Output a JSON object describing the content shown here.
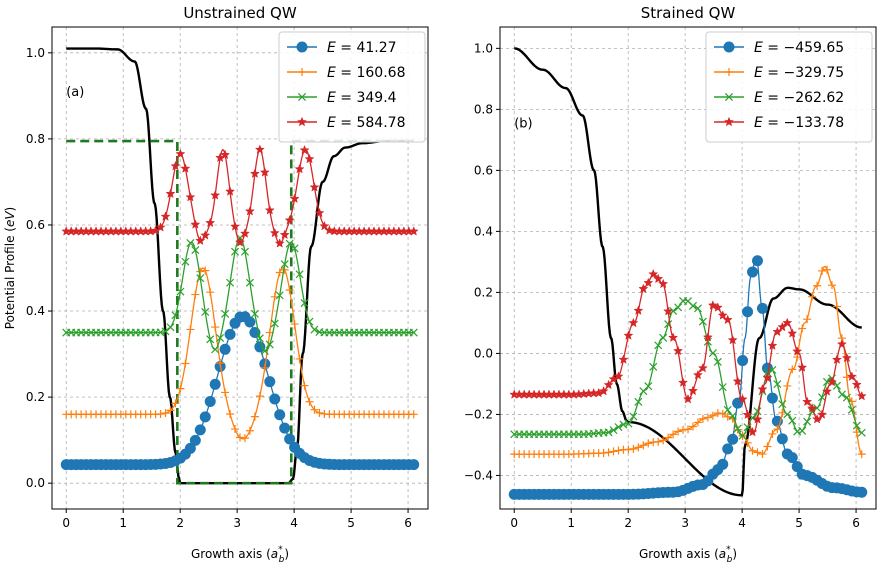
{
  "chart_data": [
    {
      "type": "line",
      "title": "Unstrained QW",
      "panel_label": "(a)",
      "xlabel": "Growth axis (a*_b)",
      "ylabel": "Potential Profile (eV)",
      "xlim": [
        -0.25,
        6.35
      ],
      "ylim": [
        -0.06,
        1.06
      ],
      "xticks": [
        0,
        1,
        2,
        3,
        4,
        5,
        6
      ],
      "yticks": [
        0.0,
        0.2,
        0.4,
        0.6,
        0.8,
        1.0
      ],
      "ytick_labels": [
        "0.0",
        "0.2",
        "0.4",
        "0.6",
        "0.8",
        "1.0"
      ],
      "legend_position": "top-right",
      "potentials": [
        {
          "name": "conduction potential",
          "color": "#000000",
          "style": "solid",
          "x": [
            0,
            0.5,
            0.9,
            1.2,
            1.4,
            1.55,
            1.7,
            1.82,
            1.92,
            1.98,
            2.0,
            3.9,
            3.98,
            4.05,
            4.15,
            4.3,
            4.5,
            4.7,
            4.9,
            5.2,
            5.6,
            6.1
          ],
          "y": [
            1.01,
            1.01,
            1.008,
            0.98,
            0.87,
            0.65,
            0.4,
            0.2,
            0.07,
            0.01,
            0.0,
            0.0,
            0.01,
            0.08,
            0.3,
            0.55,
            0.7,
            0.76,
            0.78,
            0.79,
            0.795,
            0.795
          ]
        },
        {
          "name": "step potential",
          "color": "#1f7a1f",
          "style": "dashed",
          "x": [
            0,
            1.95,
            1.95,
            3.95,
            3.95,
            6.1
          ],
          "y": [
            0.795,
            0.795,
            0.0,
            0.0,
            0.795,
            0.795
          ]
        }
      ],
      "series": [
        {
          "label": "E = 41.27",
          "name": "E=",
          "value": "41.27",
          "color": "#1f77b4",
          "marker": "circle",
          "baseline": 0.043,
          "curve": {
            "type": "bumps",
            "centers": [
              3.1
            ],
            "amps": [
              0.345
            ],
            "sigmas": [
              0.62
            ],
            "lo": 1.5,
            "hi": 4.7
          }
        },
        {
          "label": "E = 160.68",
          "name": "E=",
          "value": "160.68",
          "color": "#ff7f0e",
          "marker": "plus",
          "baseline": 0.16,
          "curve": {
            "type": "bumps",
            "centers": [
              2.4,
              3.8,
              3.1
            ],
            "amps": [
              0.34,
              0.34,
              -0.06
            ],
            "sigmas": [
              0.3,
              0.3,
              0.25
            ],
            "lo": 1.3,
            "hi": 4.9
          }
        },
        {
          "label": "E = 349.4",
          "name": "E=",
          "value": "349.4",
          "color": "#2ca02c",
          "marker": "x",
          "baseline": 0.35,
          "curve": {
            "type": "bumps",
            "centers": [
              2.2,
              3.05,
              3.95,
              2.6,
              3.5
            ],
            "amps": [
              0.21,
              0.22,
              0.21,
              -0.05,
              -0.05
            ],
            "sigmas": [
              0.22,
              0.22,
              0.22,
              0.15,
              0.15
            ],
            "lo": 1.3,
            "hi": 4.9
          }
        },
        {
          "label": "E = 584.78",
          "name": "E=",
          "value": "584.78",
          "color": "#d62728",
          "marker": "star",
          "baseline": 0.585,
          "curve": {
            "type": "bumps",
            "centers": [
              2.0,
              2.75,
              3.4,
              4.2,
              2.35,
              3.05,
              3.75
            ],
            "amps": [
              0.18,
              0.19,
              0.19,
              0.19,
              -0.03,
              -0.03,
              -0.03
            ],
            "sigmas": [
              0.2,
              0.15,
              0.15,
              0.2,
              0.1,
              0.1,
              0.1
            ],
            "lo": 1.3,
            "hi": 4.9
          }
        }
      ]
    },
    {
      "type": "line",
      "title": "Strained QW",
      "panel_label": "(b)",
      "xlabel": "Growth axis (a*_b)",
      "ylabel": "",
      "xlim": [
        -0.25,
        6.35
      ],
      "ylim": [
        -0.51,
        1.07
      ],
      "xticks": [
        0,
        1,
        2,
        3,
        4,
        5,
        6
      ],
      "yticks": [
        -0.4,
        -0.2,
        0.0,
        0.2,
        0.4,
        0.6,
        0.8,
        1.0
      ],
      "ytick_labels": [
        "−0.4",
        "−0.2",
        "0.0",
        "0.2",
        "0.4",
        "0.6",
        "0.8",
        "1.0"
      ],
      "legend_position": "top-right",
      "potentials": [
        {
          "name": "conduction potential",
          "color": "#000000",
          "style": "solid",
          "x": [
            0,
            0.5,
            0.9,
            1.2,
            1.4,
            1.55,
            1.7,
            1.8,
            1.9,
            1.97,
            2.0,
            4.0,
            4.05,
            4.3,
            4.55,
            4.8,
            5.0,
            5.5,
            6.1
          ],
          "y": [
            1.0,
            0.93,
            0.87,
            0.78,
            0.6,
            0.35,
            0.05,
            -0.1,
            -0.19,
            -0.22,
            -0.225,
            -0.465,
            -0.3,
            0.05,
            0.18,
            0.215,
            0.21,
            0.16,
            0.085
          ]
        }
      ],
      "series": [
        {
          "label": "E = −459.65",
          "name": "E=",
          "value": "−459.65",
          "color": "#1f77b4",
          "marker": "circle",
          "curve": {
            "type": "pts",
            "x": [
              0,
              2.0,
              2.8,
              3.3,
              3.6,
              3.8,
              3.95,
              4.05,
              4.15,
              4.25,
              4.35,
              4.45,
              4.6,
              4.8,
              5.1,
              5.6,
              6.1
            ],
            "y": [
              -0.462,
              -0.462,
              -0.455,
              -0.43,
              -0.38,
              -0.3,
              -0.15,
              0.05,
              0.25,
              0.32,
              0.15,
              -0.05,
              -0.22,
              -0.33,
              -0.4,
              -0.44,
              -0.455
            ]
          }
        },
        {
          "label": "E = −329.75",
          "name": "E=",
          "value": "−329.75",
          "color": "#ff7f0e",
          "marker": "plus",
          "curve": {
            "type": "pts",
            "x": [
              0,
              1.0,
              1.5,
              2.0,
              2.5,
              3.0,
              3.4,
              3.6,
              3.8,
              4.0,
              4.2,
              4.35,
              4.6,
              4.9,
              5.1,
              5.3,
              5.45,
              5.6,
              5.75,
              5.9,
              6.1
            ],
            "y": [
              -0.33,
              -0.33,
              -0.327,
              -0.315,
              -0.29,
              -0.25,
              -0.21,
              -0.195,
              -0.21,
              -0.27,
              -0.32,
              -0.33,
              -0.25,
              -0.05,
              0.1,
              0.22,
              0.285,
              0.22,
              0.05,
              -0.15,
              -0.33
            ]
          }
        },
        {
          "label": "E = −262.62",
          "name": "E=",
          "value": "−262.62",
          "color": "#2ca02c",
          "marker": "x",
          "curve": {
            "type": "pts",
            "x": [
              0,
              1.2,
              1.6,
              2.0,
              2.3,
              2.6,
              2.8,
              3.0,
              3.2,
              3.5,
              3.8,
              4.0,
              4.2,
              4.5,
              4.8,
              5.0,
              5.3,
              5.55,
              5.8,
              6.1
            ],
            "y": [
              -0.265,
              -0.265,
              -0.26,
              -0.23,
              -0.12,
              0.05,
              0.14,
              0.175,
              0.15,
              0.0,
              -0.2,
              -0.27,
              -0.21,
              -0.05,
              -0.2,
              -0.26,
              -0.18,
              -0.08,
              -0.14,
              -0.26
            ]
          }
        },
        {
          "label": "E = −133.78",
          "name": "E=",
          "value": "−133.78",
          "color": "#d62728",
          "marker": "star",
          "curve": {
            "type": "pts",
            "x": [
              0,
              1.0,
              1.5,
              1.8,
              2.1,
              2.3,
              2.45,
              2.6,
              2.8,
              3.05,
              3.3,
              3.5,
              3.75,
              4.0,
              4.2,
              4.4,
              4.6,
              4.8,
              5.0,
              5.15,
              5.35,
              5.55,
              5.75,
              5.95,
              6.1
            ],
            "y": [
              -0.135,
              -0.135,
              -0.13,
              -0.08,
              0.1,
              0.22,
              0.26,
              0.23,
              0.05,
              -0.15,
              -0.05,
              0.16,
              0.11,
              -0.15,
              -0.26,
              -0.1,
              0.07,
              0.1,
              0.0,
              -0.16,
              -0.22,
              -0.1,
              0.03,
              -0.08,
              -0.14
            ]
          }
        }
      ]
    }
  ]
}
